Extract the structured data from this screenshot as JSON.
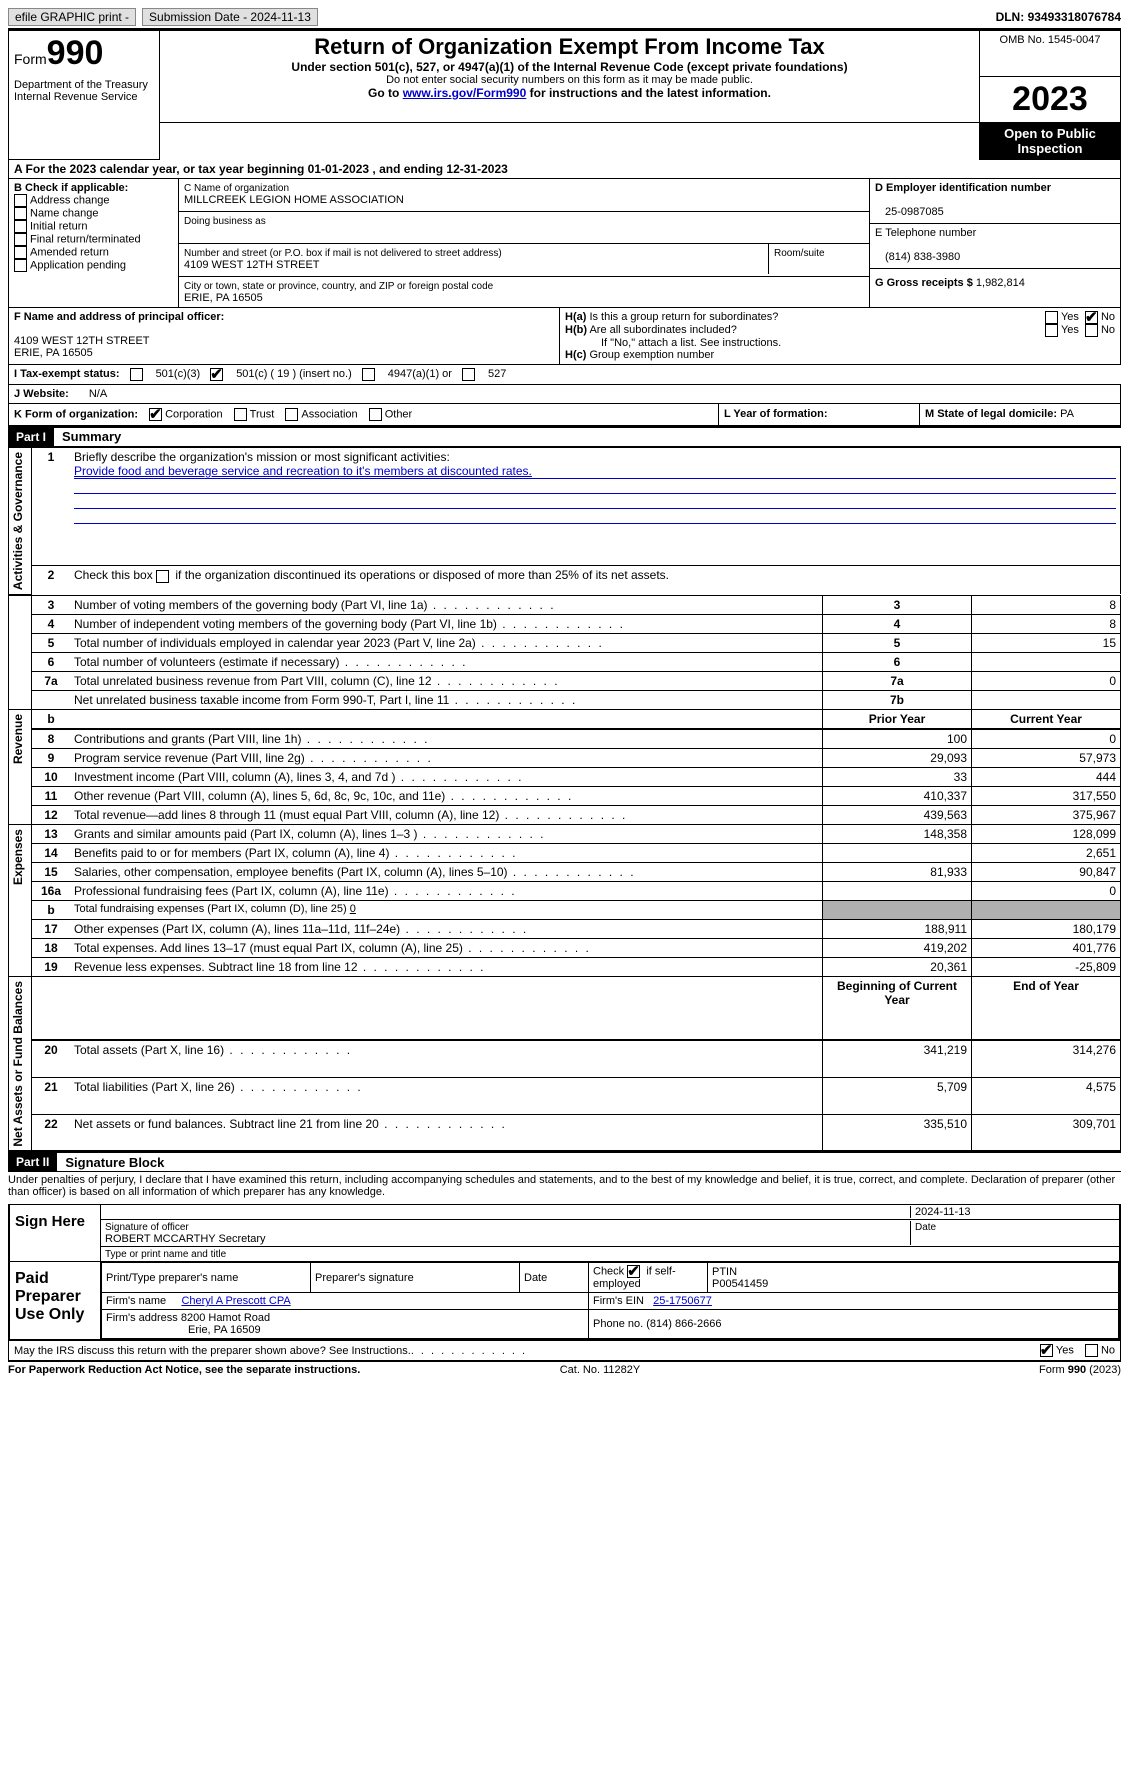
{
  "topbar": {
    "efile": "efile GRAPHIC print -",
    "submission_label": "Submission Date - ",
    "submission_date": "2024-11-13",
    "dln_label": "DLN: ",
    "dln": "93493318076784"
  },
  "header": {
    "form_label": "Form",
    "form_number": "990",
    "dept": "Department of the Treasury",
    "irs": "Internal Revenue Service",
    "title": "Return of Organization Exempt From Income Tax",
    "subtitle": "Under section 501(c), 527, or 4947(a)(1) of the Internal Revenue Code (except private foundations)",
    "note1": "Do not enter social security numbers on this form as it may be made public.",
    "note2_pre": "Go to ",
    "note2_link": "www.irs.gov/Form990",
    "note2_post": " for instructions and the latest information.",
    "omb": "OMB No. 1545-0047",
    "year": "2023",
    "open": "Open to Public Inspection"
  },
  "section_a": {
    "label": "A For the 2023 calendar year, or tax year beginning ",
    "begin": "01-01-2023",
    "mid": " , and ending ",
    "end": "12-31-2023"
  },
  "box_b": {
    "label": "B Check if applicable:",
    "opts": [
      "Address change",
      "Name change",
      "Initial return",
      "Final return/terminated",
      "Amended return",
      "Application pending"
    ]
  },
  "box_c": {
    "name_label": "C Name of organization",
    "name": "MILLCREEK LEGION HOME ASSOCIATION",
    "dba_label": "Doing business as",
    "addr_label": "Number and street (or P.O. box if mail is not delivered to street address)",
    "room_label": "Room/suite",
    "addr": "4109 WEST 12TH STREET",
    "city_label": "City or town, state or province, country, and ZIP or foreign postal code",
    "city": "ERIE, PA  16505"
  },
  "box_d": {
    "label": "D Employer identification number",
    "value": "25-0987085"
  },
  "box_e": {
    "label": "E Telephone number",
    "value": "(814) 838-3980"
  },
  "box_g": {
    "label": "G Gross receipts $ ",
    "value": "1,982,814"
  },
  "box_f": {
    "label": "F  Name and address of principal officer:",
    "addr1": "4109 WEST 12TH STREET",
    "addr2": "ERIE, PA  16505"
  },
  "box_h": {
    "a_label": "H(a)  Is this a group return for subordinates?",
    "b_label": "H(b)  Are all subordinates included?",
    "b_note": "If \"No,\" attach a list. See instructions.",
    "c_label": "H(c)  Group exemption number",
    "yes": "Yes",
    "no": "No"
  },
  "tax_status": {
    "i_label": "I  Tax-exempt status:",
    "opt1": "501(c)(3)",
    "opt2_pre": "501(c) ( ",
    "opt2_num": "19",
    "opt2_post": " ) (insert no.)",
    "opt3": "4947(a)(1) or",
    "opt4": "527"
  },
  "website": {
    "j_label": "J  Website:",
    "value": "N/A"
  },
  "k_row": {
    "label": "K Form of organization:",
    "opts": [
      "Corporation",
      "Trust",
      "Association",
      "Other"
    ],
    "l_label": "L Year of formation:",
    "m_label": "M State of legal domicile: ",
    "m_value": "PA"
  },
  "part1": {
    "header": "Part I",
    "title": "Summary",
    "sections": {
      "gov": "Activities & Governance",
      "rev": "Revenue",
      "exp": "Expenses",
      "net": "Net Assets or Fund Balances"
    },
    "line1": {
      "num": "1",
      "label": "Briefly describe the organization's mission or most significant activities:",
      "value": "Provide food and beverage service and recreation to it's members at discounted rates."
    },
    "line2": {
      "num": "2",
      "label": "Check this box ▢ if the organization discontinued its operations or disposed of more than 25% of its net assets."
    },
    "rows": [
      {
        "num": "3",
        "label": "Number of voting members of the governing body (Part VI, line 1a)",
        "box": "3",
        "val": "8"
      },
      {
        "num": "4",
        "label": "Number of independent voting members of the governing body (Part VI, line 1b)",
        "box": "4",
        "val": "8"
      },
      {
        "num": "5",
        "label": "Total number of individuals employed in calendar year 2023 (Part V, line 2a)",
        "box": "5",
        "val": "15"
      },
      {
        "num": "6",
        "label": "Total number of volunteers (estimate if necessary)",
        "box": "6",
        "val": ""
      },
      {
        "num": "7a",
        "label": "Total unrelated business revenue from Part VIII, column (C), line 12",
        "box": "7a",
        "val": "0"
      },
      {
        "num": "",
        "label": "Net unrelated business taxable income from Form 990-T, Part I, line 11",
        "box": "7b",
        "val": ""
      }
    ],
    "col_headers": {
      "prior": "Prior Year",
      "current": "Current Year",
      "begin": "Beginning of Current Year",
      "end": "End of Year"
    },
    "rev_rows": [
      {
        "num": "8",
        "label": "Contributions and grants (Part VIII, line 1h)",
        "prior": "100",
        "cur": "0"
      },
      {
        "num": "9",
        "label": "Program service revenue (Part VIII, line 2g)",
        "prior": "29,093",
        "cur": "57,973"
      },
      {
        "num": "10",
        "label": "Investment income (Part VIII, column (A), lines 3, 4, and 7d )",
        "prior": "33",
        "cur": "444"
      },
      {
        "num": "11",
        "label": "Other revenue (Part VIII, column (A), lines 5, 6d, 8c, 9c, 10c, and 11e)",
        "prior": "410,337",
        "cur": "317,550"
      },
      {
        "num": "12",
        "label": "Total revenue—add lines 8 through 11 (must equal Part VIII, column (A), line 12)",
        "prior": "439,563",
        "cur": "375,967"
      }
    ],
    "exp_rows": [
      {
        "num": "13",
        "label": "Grants and similar amounts paid (Part IX, column (A), lines 1–3 )",
        "prior": "148,358",
        "cur": "128,099"
      },
      {
        "num": "14",
        "label": "Benefits paid to or for members (Part IX, column (A), line 4)",
        "prior": "",
        "cur": "2,651"
      },
      {
        "num": "15",
        "label": "Salaries, other compensation, employee benefits (Part IX, column (A), lines 5–10)",
        "prior": "81,933",
        "cur": "90,847"
      },
      {
        "num": "16a",
        "label": "Professional fundraising fees (Part IX, column (A), line 11e)",
        "prior": "",
        "cur": "0"
      }
    ],
    "line_b": {
      "num": "b",
      "label": "Total fundraising expenses (Part IX, column (D), line 25) ",
      "val": "0"
    },
    "exp_rows2": [
      {
        "num": "17",
        "label": "Other expenses (Part IX, column (A), lines 11a–11d, 11f–24e)",
        "prior": "188,911",
        "cur": "180,179"
      },
      {
        "num": "18",
        "label": "Total expenses. Add lines 13–17 (must equal Part IX, column (A), line 25)",
        "prior": "419,202",
        "cur": "401,776"
      },
      {
        "num": "19",
        "label": "Revenue less expenses. Subtract line 18 from line 12",
        "prior": "20,361",
        "cur": "-25,809"
      }
    ],
    "net_rows": [
      {
        "num": "20",
        "label": "Total assets (Part X, line 16)",
        "prior": "341,219",
        "cur": "314,276"
      },
      {
        "num": "21",
        "label": "Total liabilities (Part X, line 26)",
        "prior": "5,709",
        "cur": "4,575"
      },
      {
        "num": "22",
        "label": "Net assets or fund balances. Subtract line 21 from line 20",
        "prior": "335,510",
        "cur": "309,701"
      }
    ]
  },
  "part2": {
    "header": "Part II",
    "title": "Signature Block",
    "declaration": "Under penalties of perjury, I declare that I have examined this return, including accompanying schedules and statements, and to the best of my knowledge and belief, it is true, correct, and complete. Declaration of preparer (other than officer) is based on all information of which preparer has any knowledge.",
    "sign_here": "Sign Here",
    "sig_label": "Signature of officer",
    "date_label": "Date",
    "sig_date": "2024-11-13",
    "officer": "ROBERT MCCARTHY Secretary",
    "type_label": "Type or print name and title",
    "paid": "Paid Preparer Use Only",
    "prep_name_label": "Print/Type preparer's name",
    "prep_sig_label": "Preparer's signature",
    "check_label": "Check",
    "self_emp": "if self-employed",
    "ptin_label": "PTIN",
    "ptin": "P00541459",
    "firm_name_label": "Firm's name",
    "firm_name": "Cheryl A Prescott CPA",
    "firm_ein_label": "Firm's EIN",
    "firm_ein": "25-1750677",
    "firm_addr_label": "Firm's address",
    "firm_addr1": "8200 Hamot Road",
    "firm_addr2": "Erie, PA  16509",
    "phone_label": "Phone no.",
    "phone": "(814) 866-2666",
    "discuss": "May the IRS discuss this return with the preparer shown above? See Instructions.",
    "yes": "Yes",
    "no": "No"
  },
  "footer": {
    "paperwork": "For Paperwork Reduction Act Notice, see the separate instructions.",
    "cat": "Cat. No. 11282Y",
    "form": "Form 990 (2023)"
  }
}
